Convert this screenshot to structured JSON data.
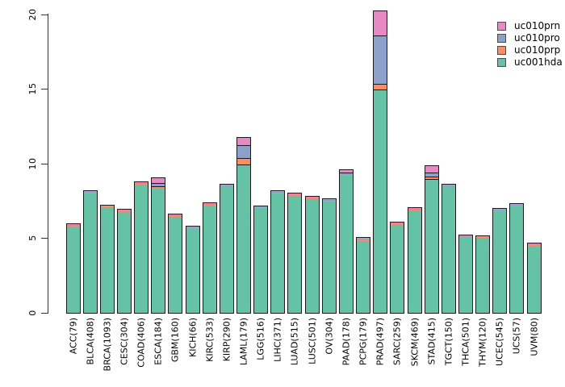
{
  "figure": {
    "background": "#ffffff",
    "axis_color": "#333333",
    "bar_border_color": "#1b1b1b"
  },
  "chart_data": {
    "type": "bar",
    "stacked": true,
    "title": "",
    "xlabel": "",
    "ylabel": "",
    "ylim": [
      0,
      20
    ],
    "yticks": [
      "0",
      "5",
      "10",
      "15",
      "20"
    ],
    "grid": false,
    "legend_position": "top-right",
    "categories": [
      "ACC(79)",
      "BLCA(408)",
      "BRCA(1093)",
      "CESC(304)",
      "COAD(406)",
      "ESCA(184)",
      "GBM(160)",
      "KICH(66)",
      "KIRC(533)",
      "KIRP(290)",
      "LAML(179)",
      "LGG(516)",
      "LIHC(371)",
      "LUAD(515)",
      "LUSC(501)",
      "OV(304)",
      "PAAD(178)",
      "PCPG(179)",
      "PRAD(497)",
      "SARC(259)",
      "SKCM(469)",
      "STAD(415)",
      "TGCT(150)",
      "THCA(501)",
      "THYM(120)",
      "UCEC(545)",
      "UCS(57)",
      "UVM(80)"
    ],
    "series": [
      {
        "name": "uc001hda",
        "color": "#66c2a5",
        "values": [
          5.8,
          8.0,
          7.05,
          6.75,
          8.6,
          8.3,
          6.45,
          5.6,
          7.2,
          8.45,
          9.9,
          7.0,
          8.0,
          7.85,
          7.6,
          7.45,
          9.2,
          4.8,
          14.9,
          5.9,
          6.85,
          8.9,
          8.45,
          5.05,
          5.0,
          6.8,
          7.15,
          4.5
        ]
      },
      {
        "name": "uc010prp",
        "color": "#fc8d62",
        "values": [
          0.05,
          0.05,
          0.05,
          0.05,
          0.05,
          0.1,
          0.05,
          0.05,
          0.05,
          0.05,
          0.4,
          0.05,
          0.05,
          0.05,
          0.05,
          0.05,
          0.05,
          0.1,
          0.35,
          0.05,
          0.05,
          0.15,
          0.05,
          0.05,
          0.05,
          0.05,
          0.05,
          0.05
        ]
      },
      {
        "name": "uc010pro",
        "color": "#8da0cb",
        "values": [
          0.05,
          0.05,
          0.05,
          0.05,
          0.05,
          0.25,
          0.05,
          0.05,
          0.05,
          0.05,
          0.9,
          0.05,
          0.05,
          0.05,
          0.05,
          0.05,
          0.1,
          0.05,
          3.25,
          0.05,
          0.05,
          0.3,
          0.05,
          0.05,
          0.05,
          0.05,
          0.05,
          0.05
        ]
      },
      {
        "name": "uc010prn",
        "color": "#e78ac3",
        "values": [
          0.05,
          0.05,
          0.05,
          0.05,
          0.05,
          0.35,
          0.05,
          0.05,
          0.05,
          0.05,
          0.5,
          0.05,
          0.05,
          0.05,
          0.05,
          0.05,
          0.2,
          0.05,
          1.7,
          0.05,
          0.05,
          0.45,
          0.05,
          0.05,
          0.05,
          0.05,
          0.05,
          0.05
        ]
      }
    ],
    "legend": [
      {
        "label": "uc010prn",
        "color": "#e78ac3"
      },
      {
        "label": "uc010pro",
        "color": "#8da0cb"
      },
      {
        "label": "uc010prp",
        "color": "#fc8d62"
      },
      {
        "label": "uc001hda",
        "color": "#66c2a5"
      }
    ]
  }
}
